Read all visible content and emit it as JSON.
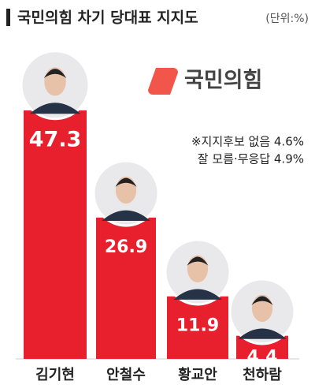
{
  "chart_data": {
    "type": "bar",
    "title": "국민의힘 차기 당대표 지지도",
    "subtitle": "(단위:%)",
    "logo": "국민의힘",
    "annotations": [
      "※지지후보 없음 4.6%",
      "잘 모름·무응답 4.9%"
    ],
    "categories": [
      "김기현",
      "안철수",
      "황교안",
      "천하람"
    ],
    "values": [
      47.3,
      26.9,
      11.9,
      4.4
    ],
    "color": "#e8202e"
  }
}
